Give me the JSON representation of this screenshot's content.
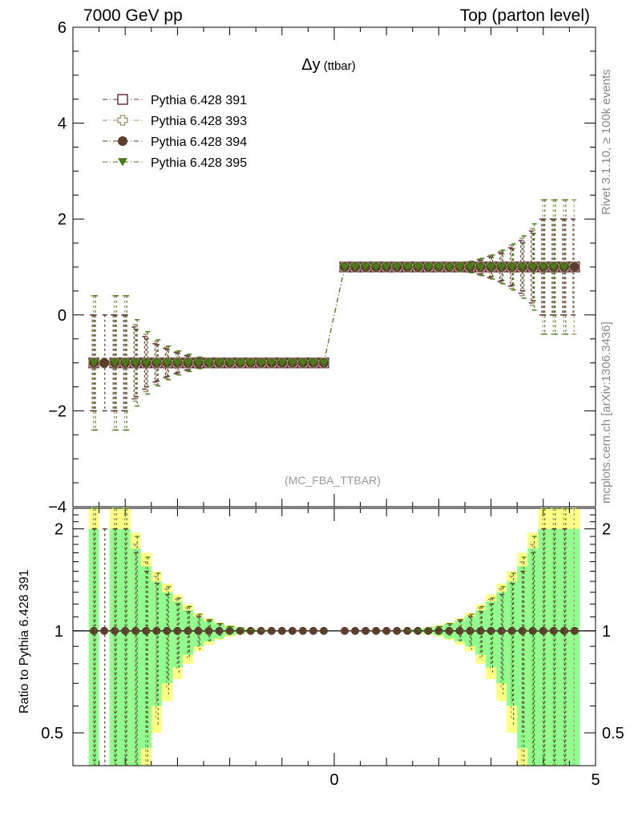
{
  "header": {
    "left": "7000 GeV pp",
    "right": "Top (parton level)"
  },
  "side_labels": {
    "rivet": "Rivet 3.1.10, ≥ 100k events",
    "mcplots": "mcplots.cern.ch [arXiv:1306.3436]"
  },
  "chart_data": [
    {
      "type": "scatter",
      "panel": "main",
      "title_symbol": "Δy",
      "title_suffix": "(ttbar)",
      "watermark": "(MC_FBA_TTBAR)",
      "xlim": [
        -5,
        5
      ],
      "ylim": [
        -4,
        6
      ],
      "xticks": [
        0,
        5
      ],
      "yticks": [
        -4,
        -2,
        0,
        2,
        4,
        6
      ],
      "ytick_labels": [
        "−4",
        "−2",
        "0",
        "2",
        "4",
        "6"
      ],
      "legend_position": "top-left",
      "x": [
        -4.6,
        -4.4,
        -4.2,
        -4.0,
        -3.8,
        -3.6,
        -3.4,
        -3.2,
        -3.0,
        -2.8,
        -2.6,
        -2.4,
        -2.2,
        -2.0,
        -1.8,
        -1.6,
        -1.4,
        -1.2,
        -1.0,
        -0.8,
        -0.6,
        -0.4,
        -0.2,
        0.2,
        0.4,
        0.6,
        0.8,
        1.0,
        1.2,
        1.4,
        1.6,
        1.8,
        2.0,
        2.2,
        2.4,
        2.6,
        2.8,
        3.0,
        3.2,
        3.4,
        3.6,
        3.8,
        4.0,
        4.2,
        4.4,
        4.6
      ],
      "series": [
        {
          "name": "Pythia 6.428 391",
          "color": "#6b3344",
          "marker": "open-square",
          "y": [
            -1,
            null,
            -1,
            -1,
            -1,
            -1,
            -1,
            -1,
            -1,
            -1,
            -1,
            -1,
            -1,
            -1,
            -1,
            -1,
            -1,
            -1,
            -1,
            -1,
            -1,
            -1,
            -1,
            1,
            1,
            1,
            1,
            1,
            1,
            1,
            1,
            1,
            1,
            1,
            1,
            1,
            1,
            1,
            1,
            1,
            1,
            1,
            1,
            1,
            1,
            1
          ],
          "err": [
            1.0,
            0,
            1.0,
            1.0,
            0.75,
            0.55,
            0.4,
            0.3,
            0.22,
            0.15,
            0.1,
            0.07,
            0.05,
            0.03,
            0.02,
            0.01,
            0.005,
            0.003,
            0.002,
            0.002,
            0.002,
            0.002,
            0.002,
            0.002,
            0.002,
            0.002,
            0.002,
            0.002,
            0.003,
            0.005,
            0.01,
            0.02,
            0.03,
            0.05,
            0.07,
            0.1,
            0.15,
            0.22,
            0.3,
            0.4,
            0.55,
            0.75,
            1.0,
            1.0,
            1.0,
            1.0
          ]
        },
        {
          "name": "Pythia 6.428 393",
          "color": "#a0946a",
          "marker": "open-cross",
          "y": [
            -1,
            -1,
            -1,
            -1,
            -1,
            -1,
            -1,
            -1,
            -1,
            -1,
            -1,
            -1,
            -1,
            -1,
            -1,
            -1,
            -1,
            -1,
            -1,
            -1,
            -1,
            -1,
            -1,
            1,
            1,
            1,
            1,
            1,
            1,
            1,
            1,
            1,
            1,
            1,
            1,
            1,
            1,
            1,
            1,
            1,
            1,
            1,
            1,
            1,
            1,
            1
          ],
          "err": [
            1.4,
            0,
            1.4,
            1.4,
            0.8,
            0.6,
            0.45,
            0.33,
            0.24,
            0.17,
            0.11,
            0.08,
            0.05,
            0.03,
            0.02,
            0.01,
            0.005,
            0.003,
            0.002,
            0.002,
            0.002,
            0.002,
            0.002,
            0.002,
            0.002,
            0.002,
            0.002,
            0.002,
            0.003,
            0.005,
            0.01,
            0.02,
            0.03,
            0.05,
            0.08,
            0.11,
            0.17,
            0.24,
            0.33,
            0.45,
            0.6,
            0.8,
            1.4,
            1.4,
            1.4,
            1.4
          ]
        },
        {
          "name": "Pythia 6.428 394",
          "color": "#5c3d2e",
          "marker": "filled-circle",
          "y": [
            -1,
            -1,
            -1,
            -1,
            -1,
            -1,
            -1,
            -1,
            -1,
            -1,
            -1,
            -1,
            -1,
            -1,
            -1,
            -1,
            -1,
            -1,
            -1,
            -1,
            -1,
            -1,
            -1,
            1,
            1,
            1,
            1,
            1,
            1,
            1,
            1,
            1,
            1,
            1,
            1,
            1,
            1,
            1,
            1,
            1,
            1,
            1,
            1,
            1,
            1,
            1
          ],
          "err": [
            1.0,
            1.0,
            1.0,
            1.0,
            0.7,
            0.5,
            0.38,
            0.28,
            0.2,
            0.14,
            0.1,
            0.07,
            0.05,
            0.03,
            0.02,
            0.01,
            0.005,
            0.003,
            0.002,
            0.002,
            0.002,
            0.002,
            0.002,
            0.002,
            0.002,
            0.002,
            0.002,
            0.002,
            0.003,
            0.005,
            0.01,
            0.02,
            0.03,
            0.05,
            0.07,
            0.1,
            0.14,
            0.2,
            0.28,
            0.38,
            0.5,
            0.7,
            1.0,
            1.0,
            1.0,
            0
          ]
        },
        {
          "name": "Pythia 6.428 395",
          "color": "#4a7a1a",
          "marker": "filled-triangle-down",
          "y": [
            -1,
            null,
            -1,
            -1,
            -1,
            -1,
            -1,
            -1,
            -1,
            -1,
            -1,
            -1,
            -1,
            -1,
            -1,
            -1,
            -1,
            -1,
            -1,
            -1,
            -1,
            -1,
            -1,
            1,
            1,
            1,
            1,
            1,
            1,
            1,
            1,
            1,
            1,
            1,
            1,
            1,
            1,
            1,
            1,
            1,
            1,
            1,
            1,
            1,
            1,
            null
          ],
          "err": [
            1.4,
            0,
            1.4,
            1.4,
            0.9,
            0.65,
            0.48,
            0.35,
            0.25,
            0.18,
            0.12,
            0.08,
            0.05,
            0.03,
            0.02,
            0.01,
            0.005,
            0.003,
            0.002,
            0.002,
            0.002,
            0.002,
            0.002,
            0.002,
            0.002,
            0.002,
            0.002,
            0.002,
            0.003,
            0.005,
            0.01,
            0.02,
            0.03,
            0.05,
            0.08,
            0.12,
            0.18,
            0.25,
            0.35,
            0.48,
            0.65,
            0.9,
            1.4,
            1.4,
            1.4,
            0
          ]
        }
      ]
    },
    {
      "type": "scatter",
      "panel": "ratio",
      "ylabel": "Ratio to Pythia 6.428 391",
      "ylim": [
        0.4,
        2.3
      ],
      "yscale": "log",
      "yticks": [
        0.5,
        1,
        2
      ],
      "ytick_labels": [
        "0.5",
        "1",
        "2"
      ],
      "xticks": [
        0,
        5
      ],
      "reference": 1,
      "bands_green_halfwidth": [
        1.0,
        0,
        1.0,
        1.0,
        0.75,
        0.55,
        0.4,
        0.3,
        0.22,
        0.15,
        0.1,
        0.07,
        0.05,
        0.03,
        0.02,
        0.01,
        0.005,
        0.003,
        0.002,
        0.002,
        0.002,
        0.002,
        0.002,
        0.002,
        0.002,
        0.002,
        0.002,
        0.002,
        0.003,
        0.005,
        0.01,
        0.02,
        0.03,
        0.05,
        0.07,
        0.1,
        0.15,
        0.22,
        0.3,
        0.4,
        0.55,
        0.75,
        1.0,
        1.0,
        1.0,
        1.0
      ],
      "bands_yellow_halfwidth": [
        1.3,
        0,
        1.3,
        1.3,
        0.95,
        0.7,
        0.5,
        0.38,
        0.28,
        0.2,
        0.13,
        0.09,
        0.06,
        0.04,
        0.025,
        0.013,
        0.007,
        0.004,
        0.003,
        0.003,
        0.003,
        0.003,
        0.003,
        0.003,
        0.003,
        0.003,
        0.003,
        0.003,
        0.004,
        0.007,
        0.013,
        0.025,
        0.04,
        0.06,
        0.09,
        0.13,
        0.2,
        0.28,
        0.38,
        0.5,
        0.7,
        0.95,
        1.3,
        1.3,
        1.3,
        1.3
      ]
    }
  ]
}
